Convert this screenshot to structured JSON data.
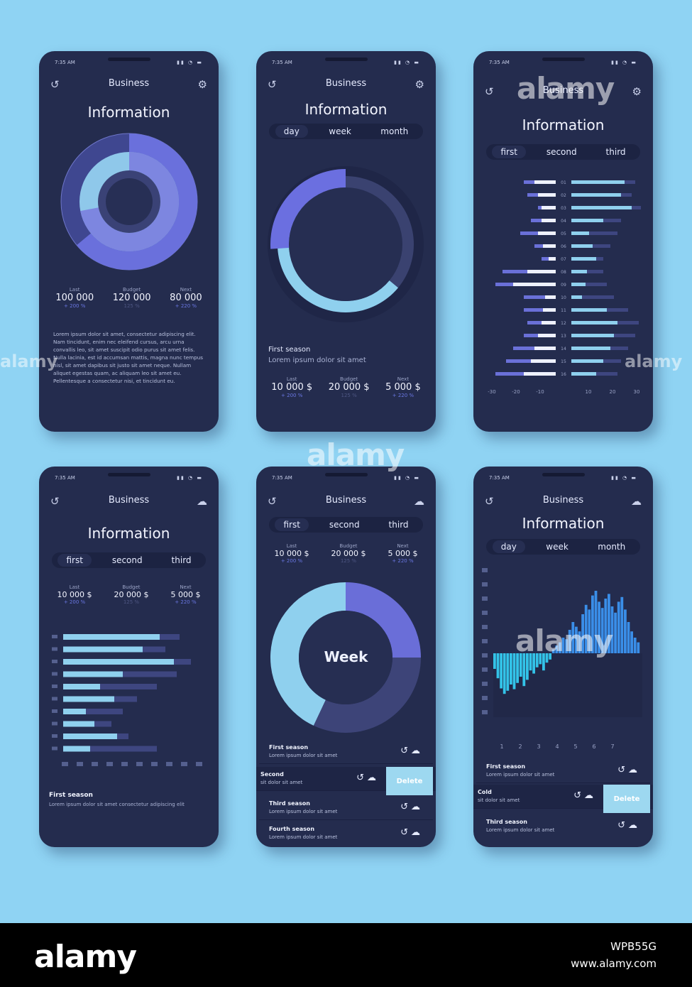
{
  "status": {
    "time": "7:35 AM",
    "icons": "▮▮ ◔ ▬"
  },
  "icons": {
    "history": "history-icon",
    "settings": "gear-icon",
    "time_share": "clock-share-icon",
    "cloud": "cloud-icon"
  },
  "screen1": {
    "header": "Business",
    "title": "Information",
    "stats": [
      {
        "label": "Last",
        "value": "100 000",
        "change": "+ 200 %"
      },
      {
        "label": "Budget",
        "value": "120 000",
        "change": "125 %"
      },
      {
        "label": "Next",
        "value": "80 000",
        "change": "+ 220 %"
      }
    ],
    "paragraph": "Lorem ipsum dolor sit amet, consectetur adipiscing elit. Nam tincidunt, enim nec eleifend cursus, arcu urna convallis leo, sit amet suscipit odio purus sit amet felis. Nulla lacinia, est id accumsan mattis, magna nunc tempus nisl, sit amet dapibus sit justo sit amet neque. Nullam aliquet egestas quam, ac aliquam leo sit amet eu. Pellentesque a consectetur nisi, et tincidunt eu.",
    "donut": {
      "outer_share": 0.64,
      "inner_share": 0.72
    }
  },
  "screen2": {
    "header": "Business",
    "title": "Information",
    "tabs": [
      "day",
      "week",
      "month"
    ],
    "season_title": "First season",
    "season_text": "Lorem ipsum dolor sit amet",
    "stats": [
      {
        "label": "Last",
        "value": "10 000 $",
        "change": "+ 200 %"
      },
      {
        "label": "Budget",
        "value": "20 000 $",
        "change": "125 %"
      },
      {
        "label": "Next",
        "value": "5 000 $",
        "change": "+ 220 %"
      }
    ],
    "ring": {
      "accent_share": 0.26,
      "light_share": 0.52
    }
  },
  "screen3": {
    "header": "Business",
    "title": "Information",
    "tabs": [
      "first",
      "second",
      "third"
    ],
    "rows": [
      "01",
      "02",
      "03",
      "04",
      "05",
      "06",
      "07",
      "08",
      "09",
      "10",
      "11",
      "12",
      "13",
      "14",
      "15",
      "16"
    ],
    "left_dark": [
      45,
      40,
      25,
      35,
      50,
      30,
      20,
      75,
      85,
      45,
      45,
      40,
      45,
      60,
      70,
      85
    ],
    "left_white": [
      30,
      25,
      20,
      20,
      25,
      18,
      10,
      40,
      60,
      15,
      18,
      20,
      25,
      30,
      35,
      45
    ],
    "right_light": [
      75,
      70,
      85,
      45,
      25,
      30,
      35,
      22,
      20,
      15,
      50,
      65,
      60,
      55,
      45,
      35
    ],
    "right_dark": [
      90,
      85,
      98,
      70,
      65,
      55,
      45,
      45,
      50,
      60,
      80,
      95,
      90,
      80,
      70,
      65
    ],
    "x_ticks": [
      "-30",
      "-20",
      "-10",
      "",
      "10",
      "20",
      "30"
    ]
  },
  "screen4": {
    "header": "Business",
    "title": "Information",
    "tabs": [
      "first",
      "second",
      "third"
    ],
    "stats": [
      {
        "label": "Last",
        "value": "10 000 $",
        "change": "+ 200 %"
      },
      {
        "label": "Budget",
        "value": "20 000 $",
        "change": "125 %"
      },
      {
        "label": "Next",
        "value": "5 000 $",
        "change": "+ 220 %"
      }
    ],
    "bars_light": [
      0.68,
      0.56,
      0.78,
      0.42,
      0.26,
      0.36,
      0.16,
      0.22,
      0.38,
      0.19
    ],
    "bars_dark": [
      0.82,
      0.72,
      0.9,
      0.8,
      0.66,
      0.52,
      0.42,
      0.34,
      0.46,
      0.66
    ],
    "season_title": "First season",
    "season_text": "Lorem ipsum dolor sit amet consectetur adipiscing elit"
  },
  "screen5": {
    "header": "Business",
    "tabs": [
      "first",
      "second",
      "third"
    ],
    "stats": [
      {
        "label": "Last",
        "value": "10 000 $",
        "change": "+ 200 %"
      },
      {
        "label": "Budget",
        "value": "20 000 $",
        "change": "125 %"
      },
      {
        "label": "Next",
        "value": "5 000 $",
        "change": "+ 220 %"
      }
    ],
    "donut_label": "Week",
    "donut": {
      "accent": 0.25,
      "dark": 0.32,
      "light": 0.43
    },
    "rows": [
      {
        "title": "First season",
        "text": "Lorem ipsum dolor sit amet"
      },
      {
        "title": "Second",
        "text": "sit dolor sit amet"
      },
      {
        "title": "Third season",
        "text": "Lorem ipsum dolor sit amet"
      },
      {
        "title": "Fourth season",
        "text": "Lorem ipsum dolor sit amet"
      }
    ],
    "delete_label": "Delete"
  },
  "screen6": {
    "header": "Business",
    "title": "Information",
    "tabs": [
      "day",
      "week",
      "month"
    ],
    "x_ticks": [
      "1",
      "2",
      "3",
      "4",
      "5",
      "6",
      "7"
    ],
    "values": [
      -0.2,
      -0.32,
      -0.45,
      -0.52,
      -0.48,
      -0.4,
      -0.46,
      -0.38,
      -0.3,
      -0.42,
      -0.34,
      -0.22,
      -0.26,
      -0.18,
      -0.14,
      -0.22,
      -0.12,
      -0.08,
      0.05,
      0.1,
      0.14,
      0.2,
      0.18,
      0.3,
      0.4,
      0.34,
      0.28,
      0.5,
      0.62,
      0.56,
      0.74,
      0.8,
      0.66,
      0.58,
      0.7,
      0.76,
      0.6,
      0.52,
      0.66,
      0.72,
      0.56,
      0.4,
      0.28,
      0.2,
      0.14
    ],
    "rows": [
      {
        "title": "First season",
        "text": "Lorem ipsum dolor sit amet"
      },
      {
        "title": "Cold",
        "text": "sit dolor sit amet"
      },
      {
        "title": "Third season",
        "text": "Lorem ipsum dolor sit amet"
      }
    ],
    "delete_label": "Delete"
  },
  "watermark": {
    "brand": "alamy",
    "image_id": "WPB55G",
    "url": "www.alamy.com"
  }
}
